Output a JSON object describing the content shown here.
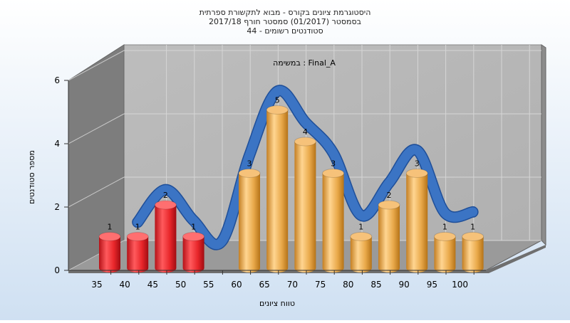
{
  "chart_data": {
    "type": "bar",
    "title": [
      "היסטוגרמת ציונים בקורס - מבוא לתקשורת ספרתית",
      "בסמסטר (01/2017) סמסטר חורף 2017/18",
      "סטודנטים רשומים - 44"
    ],
    "subtitle": "במשימה : Final_A",
    "xlabel": "טווח ציונים",
    "ylabel": "מספר סטודנטים",
    "ylim": [
      0,
      6
    ],
    "yticks": [
      0,
      2,
      4,
      6
    ],
    "grid": true,
    "x_tick_labels": [
      "35",
      "40",
      "45",
      "50",
      "55",
      "60",
      "65",
      "70",
      "75",
      "80",
      "85",
      "90",
      "95",
      "100"
    ],
    "bars": [
      {
        "x": 35,
        "value": 1,
        "color": "red"
      },
      {
        "x": 40,
        "value": 1,
        "color": "red"
      },
      {
        "x": 45,
        "value": 2,
        "color": "red"
      },
      {
        "x": 50,
        "value": 1,
        "color": "red"
      },
      {
        "x": 60,
        "value": 3,
        "color": "orange"
      },
      {
        "x": 65,
        "value": 5,
        "color": "orange"
      },
      {
        "x": 70,
        "value": 4,
        "color": "orange"
      },
      {
        "x": 75,
        "value": 3,
        "color": "orange"
      },
      {
        "x": 80,
        "value": 1,
        "color": "orange"
      },
      {
        "x": 85,
        "value": 2,
        "color": "orange"
      },
      {
        "x": 90,
        "value": 3,
        "color": "orange"
      },
      {
        "x": 95,
        "value": 1,
        "color": "orange"
      },
      {
        "x": 100,
        "value": 1,
        "color": "orange"
      }
    ],
    "colors": {
      "red": "#e8262a",
      "orange": "#e9a94a",
      "curve": "#3b74c4"
    }
  }
}
